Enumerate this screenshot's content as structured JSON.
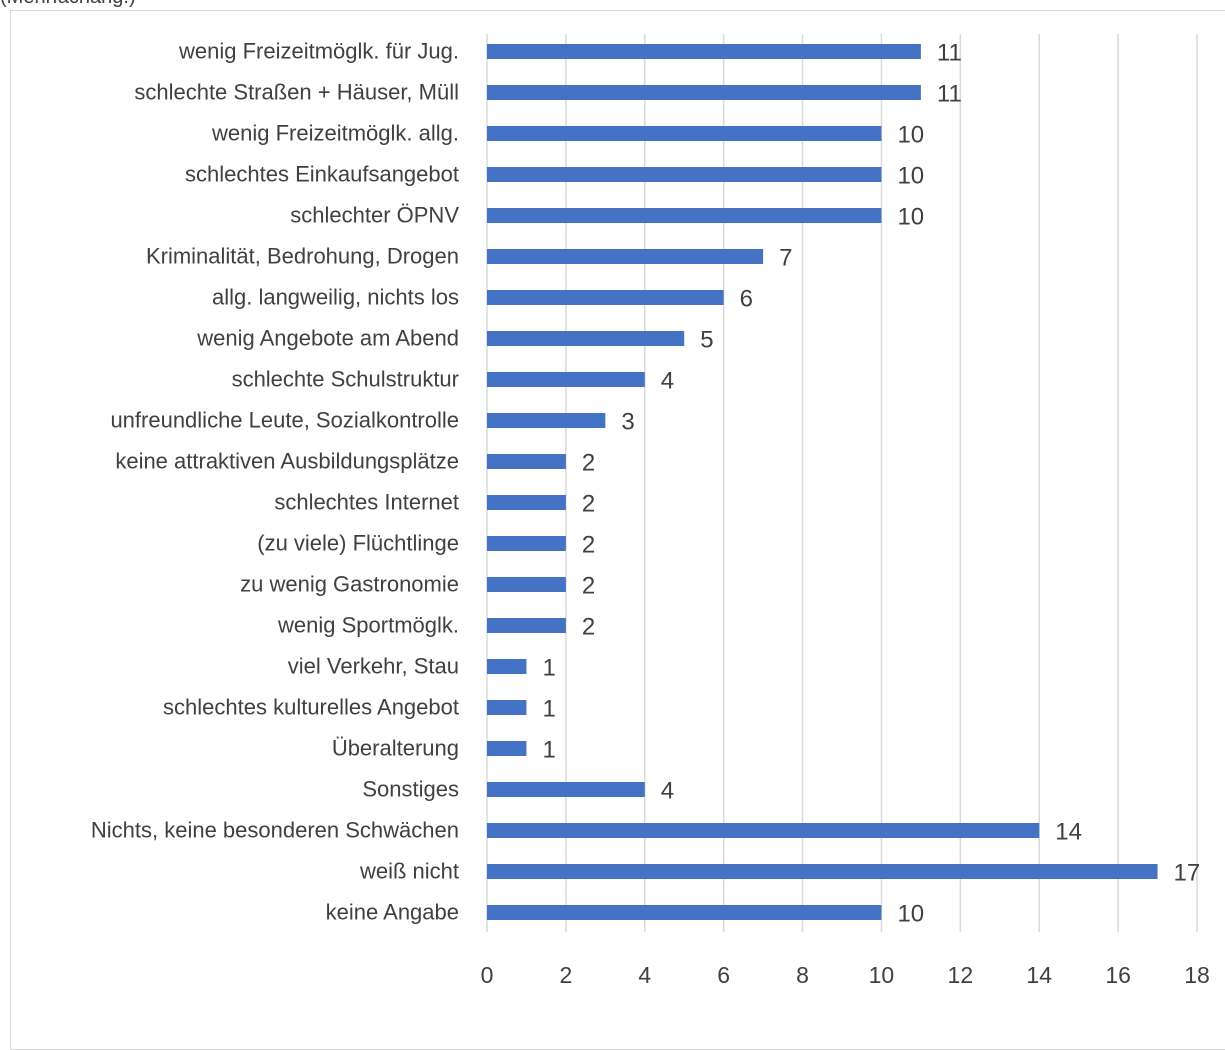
{
  "header": {
    "clipped_text": "(Mehrfachang.)"
  },
  "chart_data": {
    "type": "bar",
    "orientation": "horizontal",
    "title": "",
    "xlabel": "",
    "ylabel": "",
    "categories": [
      "wenig Freizeitmöglk. für Jug.",
      "schlechte Straßen + Häuser, Müll",
      "wenig Freizeitmöglk. allg.",
      "schlechtes Einkaufsangebot",
      "schlechter ÖPNV",
      "Kriminalität, Bedrohung, Drogen",
      "allg. langweilig, nichts los",
      "wenig Angebote am Abend",
      "schlechte Schulstruktur",
      "unfreundliche Leute, Sozialkontrolle",
      "keine attraktiven Ausbildungsplätze",
      "schlechtes Internet",
      "(zu viele) Flüchtlinge",
      "zu wenig Gastronomie",
      "wenig Sportmöglk.",
      "viel Verkehr, Stau",
      "schlechtes kulturelles Angebot",
      "Überalterung",
      "Sonstiges",
      "Nichts, keine besonderen Schwächen",
      "weiß nicht",
      "keine Angabe"
    ],
    "values": [
      11,
      11,
      10,
      10,
      10,
      7,
      6,
      5,
      4,
      3,
      2,
      2,
      2,
      2,
      2,
      1,
      1,
      1,
      4,
      14,
      17,
      10
    ],
    "xlim": [
      0,
      18
    ],
    "xticks": [
      "0",
      "2",
      "4",
      "6",
      "8",
      "10",
      "12",
      "14",
      "16",
      "18"
    ],
    "grid": "vertical",
    "legend": "none",
    "colors": {
      "bar": "#4472c4",
      "grid": "#d9d9d9",
      "label": "#404040"
    }
  }
}
